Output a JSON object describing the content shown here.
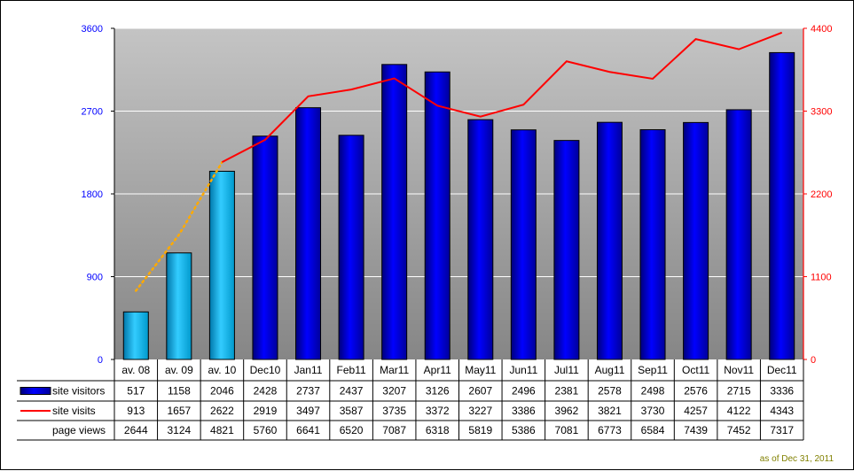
{
  "footnote": "as of Dec 31, 2011",
  "colors": {
    "bar_dark": "#0000ff",
    "bar_light": "#33ccff",
    "visits_line": "#ff0000",
    "extrapolated_line": "#ffaa00",
    "left_axis_text": "#0000ff",
    "right_axis_text": "#ff0000"
  },
  "chart_data": {
    "type": "bar",
    "categories": [
      "av. 08",
      "av. 09",
      "av. 10",
      "Dec10",
      "Jan11",
      "Feb11",
      "Mar11",
      "Apr11",
      "May11",
      "Jun11",
      "Jul11",
      "Aug11",
      "Sep11",
      "Oct11",
      "Nov11",
      "Dec11"
    ],
    "series": [
      {
        "name": "site visitors",
        "kind": "bar",
        "axis": "left",
        "values": [
          517,
          1158,
          2046,
          2428,
          2737,
          2437,
          3207,
          3126,
          2607,
          2496,
          2381,
          2578,
          2498,
          2576,
          2715,
          3336
        ]
      },
      {
        "name": "site visits",
        "kind": "line",
        "axis": "right",
        "values": [
          913,
          1657,
          2622,
          2919,
          3497,
          3587,
          3735,
          3372,
          3227,
          3386,
          3962,
          3821,
          3730,
          4257,
          4122,
          4343
        ]
      },
      {
        "name": "page views",
        "kind": "table-only",
        "values": [
          2644,
          3124,
          4821,
          5760,
          6641,
          6520,
          7087,
          6318,
          5819,
          5386,
          7081,
          6773,
          6584,
          7439,
          7452,
          7317
        ]
      }
    ],
    "averages_count": 3,
    "y_left": {
      "min": 0,
      "max": 3600,
      "ticks": [
        "0",
        "900",
        "1800",
        "2700",
        "3600"
      ]
    },
    "y_right": {
      "min": 0,
      "max": 4400,
      "ticks": [
        "0",
        "1100",
        "2200",
        "3300",
        "4400"
      ]
    },
    "grid": true,
    "legend": "data-table-left"
  }
}
